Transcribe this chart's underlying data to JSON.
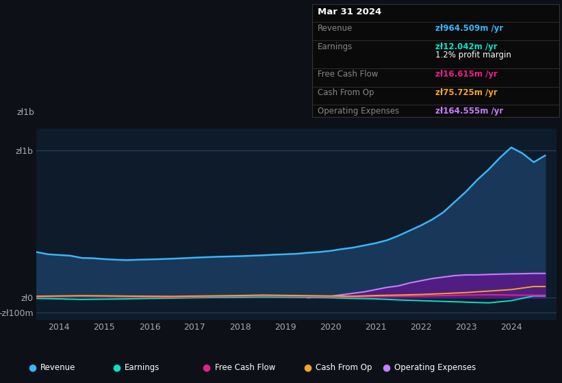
{
  "background_color": "#0d1117",
  "plot_bg_color": "#0d1b2a",
  "info_box": {
    "title": "Mar 31 2024",
    "revenue_label": "Revenue",
    "revenue_value": "zł964.509m /yr",
    "revenue_color": "#38b6ff",
    "earnings_label": "Earnings",
    "earnings_value": "zł12.042m /yr",
    "earnings_color": "#00e5c8",
    "profit_margin": "1.2% profit margin",
    "profit_color": "#ffffff",
    "fcf_label": "Free Cash Flow",
    "fcf_value": "zł16.615m /yr",
    "fcf_color": "#e91e8c",
    "cashfromop_label": "Cash From Op",
    "cashfromop_value": "zł75.725m /yr",
    "cashfromop_color": "#f5a623",
    "opex_label": "Operating Expenses",
    "opex_value": "zł164.555m /yr",
    "opex_color": "#c77dff"
  },
  "series": {
    "revenue": {
      "color": "#38b6ff",
      "fill_color": "#1a3a5c",
      "x": [
        2013.0,
        2013.25,
        2013.5,
        2013.75,
        2014.0,
        2014.25,
        2014.5,
        2014.75,
        2015.0,
        2015.25,
        2015.5,
        2015.75,
        2016.0,
        2016.25,
        2016.5,
        2016.75,
        2017.0,
        2017.25,
        2017.5,
        2017.75,
        2018.0,
        2018.25,
        2018.5,
        2018.75,
        2019.0,
        2019.25,
        2019.5,
        2019.75,
        2020.0,
        2020.25,
        2020.5,
        2020.75,
        2021.0,
        2021.25,
        2021.5,
        2021.75,
        2022.0,
        2022.25,
        2022.5,
        2022.75,
        2023.0,
        2023.25,
        2023.5,
        2023.75,
        2024.0,
        2024.25
      ],
      "y": [
        310,
        295,
        290,
        285,
        270,
        268,
        262,
        258,
        255,
        258,
        260,
        262,
        265,
        268,
        272,
        275,
        278,
        280,
        282,
        285,
        288,
        292,
        295,
        298,
        305,
        310,
        318,
        330,
        340,
        355,
        370,
        390,
        420,
        455,
        490,
        530,
        580,
        650,
        720,
        800,
        870,
        950,
        1020,
        980,
        920,
        965
      ]
    },
    "earnings": {
      "color": "#00e5c8",
      "x": [
        2013.0,
        2013.5,
        2014.0,
        2014.5,
        2015.0,
        2015.5,
        2016.0,
        2016.5,
        2017.0,
        2017.5,
        2018.0,
        2018.5,
        2019.0,
        2019.5,
        2020.0,
        2020.5,
        2021.0,
        2021.5,
        2022.0,
        2022.5,
        2023.0,
        2023.5,
        2024.0,
        2024.25
      ],
      "y": [
        -5,
        -8,
        -12,
        -10,
        -8,
        -5,
        -3,
        0,
        2,
        3,
        5,
        4,
        2,
        0,
        -5,
        -8,
        -15,
        -20,
        -25,
        -30,
        -35,
        -20,
        12,
        12
      ]
    },
    "free_cash_flow": {
      "color": "#e91e8c",
      "x": [
        2013.0,
        2013.5,
        2014.0,
        2014.5,
        2015.0,
        2015.5,
        2016.0,
        2016.5,
        2017.0,
        2017.5,
        2018.0,
        2018.5,
        2019.0,
        2019.5,
        2020.0,
        2020.5,
        2021.0,
        2021.5,
        2022.0,
        2022.5,
        2023.0,
        2023.5,
        2024.0,
        2024.25
      ],
      "y": [
        5,
        8,
        10,
        8,
        6,
        4,
        3,
        5,
        8,
        10,
        12,
        10,
        8,
        6,
        5,
        8,
        10,
        12,
        15,
        18,
        20,
        18,
        17,
        17
      ]
    },
    "cash_from_op": {
      "color": "#f5a623",
      "x": [
        2013.0,
        2013.5,
        2014.0,
        2014.5,
        2015.0,
        2015.5,
        2016.0,
        2016.5,
        2017.0,
        2017.5,
        2018.0,
        2018.5,
        2019.0,
        2019.5,
        2020.0,
        2020.5,
        2021.0,
        2021.5,
        2022.0,
        2022.5,
        2023.0,
        2023.5,
        2024.0,
        2024.25
      ],
      "y": [
        10,
        12,
        14,
        13,
        11,
        10,
        9,
        11,
        13,
        15,
        18,
        16,
        14,
        12,
        10,
        15,
        18,
        22,
        28,
        35,
        45,
        55,
        76,
        76
      ]
    },
    "operating_expenses": {
      "color": "#c77dff",
      "fill_color": "#5a1a8a",
      "x": [
        2019.0,
        2019.25,
        2019.5,
        2019.75,
        2020.0,
        2020.25,
        2020.5,
        2020.75,
        2021.0,
        2021.25,
        2021.5,
        2021.75,
        2022.0,
        2022.25,
        2022.5,
        2022.75,
        2023.0,
        2023.25,
        2023.5,
        2023.75,
        2024.0,
        2024.25
      ],
      "y": [
        0,
        5,
        10,
        20,
        30,
        40,
        55,
        70,
        80,
        100,
        115,
        130,
        140,
        150,
        155,
        155,
        158,
        160,
        162,
        163,
        165,
        165
      ]
    }
  },
  "ylim": [
    -150,
    1150
  ],
  "xlim": [
    2013.0,
    2024.5
  ],
  "yticks": [
    -100,
    0,
    1000
  ],
  "ytick_labels": [
    "-zł100m",
    "zł0",
    "zł1b"
  ],
  "xticks": [
    2013.5,
    2014.5,
    2015.5,
    2016.5,
    2017.5,
    2018.5,
    2019.5,
    2020.5,
    2021.5,
    2022.5,
    2023.5
  ],
  "xtick_labels": [
    "2014",
    "2015",
    "2016",
    "2017",
    "2018",
    "2019",
    "2020",
    "2021",
    "2022",
    "2023",
    "2024"
  ],
  "legend_items": [
    {
      "label": "Revenue",
      "color": "#38b6ff"
    },
    {
      "label": "Earnings",
      "color": "#00e5c8"
    },
    {
      "label": "Free Cash Flow",
      "color": "#e91e8c"
    },
    {
      "label": "Cash From Op",
      "color": "#f5a623"
    },
    {
      "label": "Operating Expenses",
      "color": "#c77dff"
    }
  ]
}
